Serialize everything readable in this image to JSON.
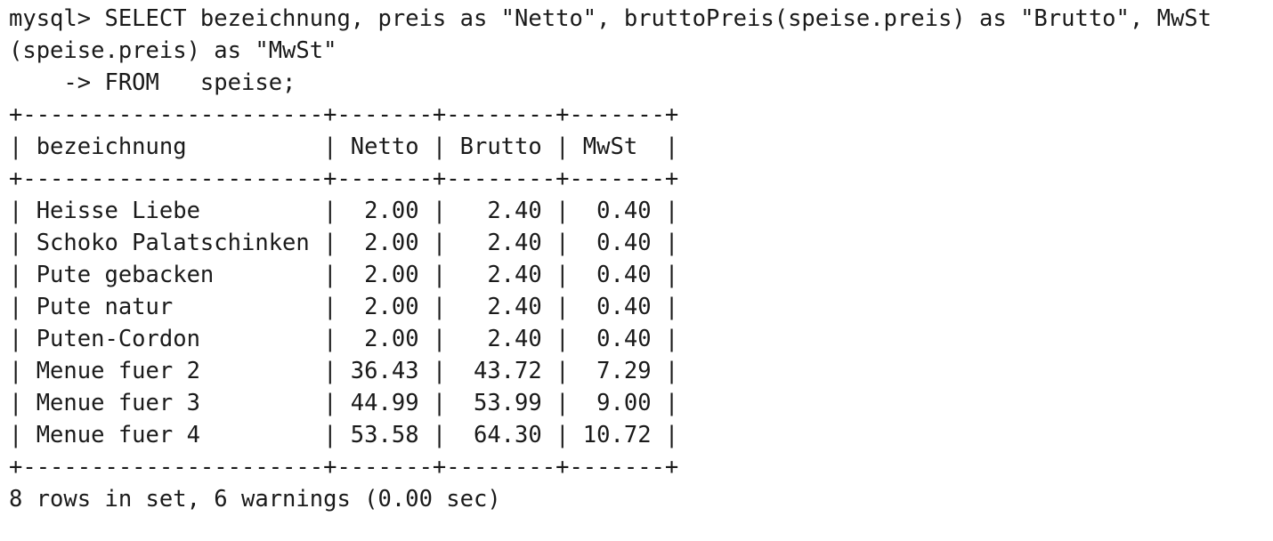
{
  "terminal": {
    "query": {
      "line1": "mysql> SELECT bezeichnung, preis as \"Netto\", bruttoPreis(speise.preis) as \"Brutto\", MwSt",
      "line2": "(speise.preis) as \"MwSt\"",
      "line3": "    -> FROM   speise;"
    },
    "table": {
      "border": "+----------------------+-------+--------+-------+",
      "header": "| bezeichnung          | Netto | Brutto | MwSt  |",
      "rows": [
        "| Heisse Liebe         |  2.00 |   2.40 |  0.40 |",
        "| Schoko Palatschinken |  2.00 |   2.40 |  0.40 |",
        "| Pute gebacken        |  2.00 |   2.40 |  0.40 |",
        "| Pute natur           |  2.00 |   2.40 |  0.40 |",
        "| Puten-Cordon         |  2.00 |   2.40 |  0.40 |",
        "| Menue fuer 2         | 36.43 |  43.72 |  7.29 |",
        "| Menue fuer 3         | 44.99 |  53.99 |  9.00 |",
        "| Menue fuer 4         | 53.58 |  64.30 | 10.72 |"
      ]
    },
    "summary": "8 rows in set, 6 warnings (0.00 sec)"
  }
}
